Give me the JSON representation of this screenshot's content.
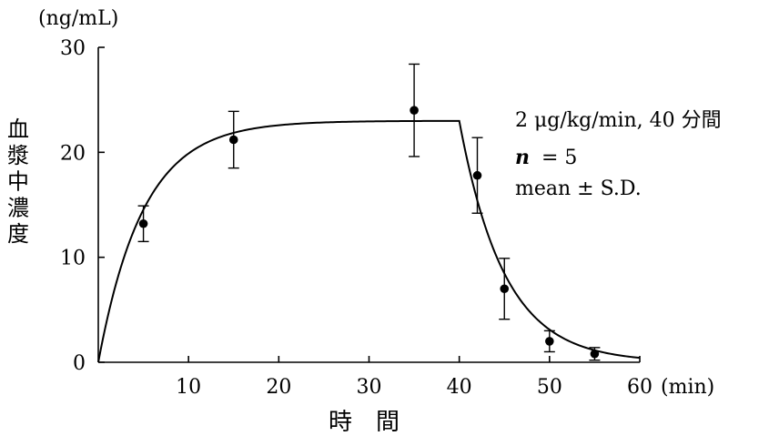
{
  "chart_data": {
    "type": "scatter",
    "title": "",
    "y_unit": "(ng/mL)",
    "x_unit": "(min)",
    "ylabel": "血漿中濃度",
    "xlabel": "時　間",
    "xlim": [
      0,
      60
    ],
    "ylim": [
      0,
      30
    ],
    "x_ticks": [
      "10",
      "20",
      "30",
      "40",
      "50",
      "60"
    ],
    "y_ticks": [
      "0",
      "10",
      "20",
      "30"
    ],
    "annotations": {
      "dose": "2 μg/kg/min, 40 分間",
      "n_label": "n",
      "n_value": "= 5",
      "stat": "mean ± S.D."
    },
    "series": [
      {
        "points": [
          {
            "x": 5,
            "y": 13.2,
            "sd": 1.7
          },
          {
            "x": 15,
            "y": 21.2,
            "sd": 2.7
          },
          {
            "x": 35,
            "y": 24.0,
            "sd": 4.4
          },
          {
            "x": 42,
            "y": 17.8,
            "sd": 3.6
          },
          {
            "x": 45,
            "y": 7.0,
            "sd": 2.9
          },
          {
            "x": 50,
            "y": 2.0,
            "sd": 1.0
          },
          {
            "x": 55,
            "y": 0.8,
            "sd": 0.6
          }
        ]
      }
    ],
    "fit_curve": {
      "infusion_end": 40,
      "plateau": 23.0,
      "rise_rate": 0.2,
      "decay_rate": 0.2
    }
  }
}
